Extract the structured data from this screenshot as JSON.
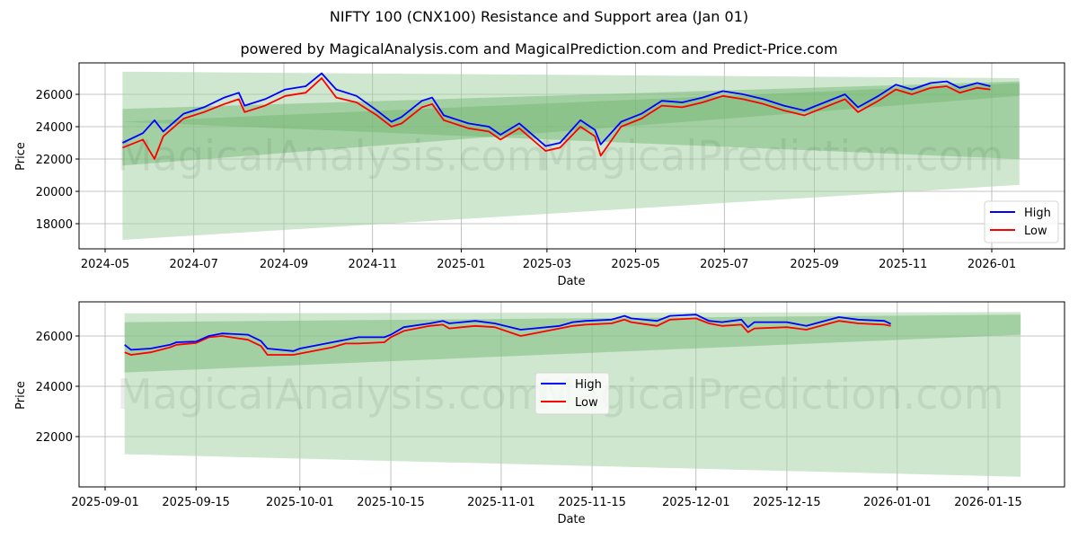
{
  "header": {
    "title": "NIFTY 100 (CNX100) Resistance and Support area (Jan 01)",
    "subtitle": "powered by MagicalAnalysis.com and MagicalPrediction.com and Predict-Price.com"
  },
  "watermarks": [
    "MagicalAnalysis.com",
    "MagicalPrediction.com"
  ],
  "colors": {
    "high": "#0000ff",
    "low": "#ff0000",
    "band_light": "#a5d4a5",
    "band_dark": "#6fb46f",
    "grid": "#b0b0b0"
  },
  "chart_data": [
    {
      "type": "line",
      "title": "NIFTY 100 (CNX100) Resistance and Support area (Jan 01)",
      "xlabel": "Date",
      "ylabel": "Price",
      "x_ticks": [
        "2024-05",
        "2024-07",
        "2024-09",
        "2024-11",
        "2025-01",
        "2025-03",
        "2025-05",
        "2025-07",
        "2025-09",
        "2025-11",
        "2026-01"
      ],
      "y_ticks": [
        18000,
        20000,
        22000,
        24000,
        26000
      ],
      "ylim": [
        16500,
        28000
      ],
      "grid": true,
      "legend": {
        "position": "lower right",
        "entries": [
          "High",
          "Low"
        ]
      },
      "x": [
        "2024-05-13",
        "2024-05-27",
        "2024-06-04",
        "2024-06-10",
        "2024-06-24",
        "2024-07-08",
        "2024-07-22",
        "2024-08-01",
        "2024-08-05",
        "2024-08-19",
        "2024-09-02",
        "2024-09-16",
        "2024-09-27",
        "2024-10-07",
        "2024-10-21",
        "2024-11-04",
        "2024-11-14",
        "2024-11-21",
        "2024-12-05",
        "2024-12-12",
        "2024-12-20",
        "2025-01-06",
        "2025-01-20",
        "2025-01-28",
        "2025-02-10",
        "2025-02-28",
        "2025-03-10",
        "2025-03-24",
        "2025-04-03",
        "2025-04-07",
        "2025-04-21",
        "2025-05-05",
        "2025-05-19",
        "2025-06-02",
        "2025-06-16",
        "2025-06-30",
        "2025-07-14",
        "2025-07-28",
        "2025-08-11",
        "2025-08-25",
        "2025-09-08",
        "2025-09-22",
        "2025-10-01",
        "2025-10-15",
        "2025-10-27",
        "2025-11-07",
        "2025-11-20",
        "2025-12-01",
        "2025-12-10",
        "2025-12-22",
        "2025-12-31"
      ],
      "series": [
        {
          "name": "High",
          "values": [
            23000,
            23600,
            24400,
            23700,
            24800,
            25200,
            25800,
            26100,
            25300,
            25700,
            26300,
            26500,
            27300,
            26300,
            25900,
            25000,
            24300,
            24600,
            25600,
            25800,
            24700,
            24200,
            24000,
            23500,
            24200,
            22800,
            23000,
            24400,
            23800,
            22900,
            24300,
            24800,
            25600,
            25500,
            25800,
            26200,
            26000,
            25700,
            25300,
            25000,
            25500,
            26000,
            25200,
            25900,
            26600,
            26300,
            26700,
            26800,
            26400,
            26700,
            26500
          ]
        },
        {
          "name": "Low",
          "values": [
            22700,
            23200,
            22000,
            23400,
            24500,
            24900,
            25400,
            25700,
            24900,
            25300,
            25900,
            26100,
            27000,
            25800,
            25500,
            24700,
            24000,
            24200,
            25200,
            25400,
            24400,
            23900,
            23700,
            23200,
            23900,
            22500,
            22700,
            24000,
            23400,
            22200,
            24000,
            24500,
            25300,
            25200,
            25500,
            25900,
            25700,
            25400,
            25000,
            24700,
            25200,
            25700,
            24900,
            25600,
            26300,
            26000,
            26400,
            26500,
            26100,
            26400,
            26300
          ]
        }
      ],
      "bands": [
        {
          "name": "outer",
          "x_start": "2024-05-13",
          "x_end": "2026-01-20",
          "top": [
            27400,
            27000
          ],
          "bottom": [
            17000,
            20400
          ]
        },
        {
          "name": "inner-1",
          "x_start": "2024-05-13",
          "x_end": "2026-01-20",
          "top": [
            25100,
            26800
          ],
          "bottom": [
            21600,
            25900
          ]
        },
        {
          "name": "inner-2",
          "x_start": "2024-05-13",
          "x_end": "2026-01-20",
          "top": [
            24300,
            26700
          ],
          "bottom": [
            24300,
            22000
          ]
        }
      ]
    },
    {
      "type": "line",
      "title": "",
      "xlabel": "Date",
      "ylabel": "Price",
      "x_ticks": [
        "2025-09-01",
        "2025-09-15",
        "2025-10-01",
        "2025-10-15",
        "2025-11-01",
        "2025-11-15",
        "2025-12-01",
        "2025-12-15",
        "2026-01-01",
        "2026-01-15"
      ],
      "y_ticks": [
        22000,
        24000,
        26000
      ],
      "ylim": [
        20000,
        27300
      ],
      "grid": true,
      "legend": {
        "position": "center",
        "entries": [
          "High",
          "Low"
        ]
      },
      "x": [
        "2025-09-04",
        "2025-09-05",
        "2025-09-08",
        "2025-09-11",
        "2025-09-12",
        "2025-09-15",
        "2025-09-17",
        "2025-09-19",
        "2025-09-23",
        "2025-09-25",
        "2025-09-26",
        "2025-09-30",
        "2025-10-01",
        "2025-10-06",
        "2025-10-08",
        "2025-10-10",
        "2025-10-14",
        "2025-10-15",
        "2025-10-17",
        "2025-10-21",
        "2025-10-23",
        "2025-10-24",
        "2025-10-28",
        "2025-10-31",
        "2025-11-04",
        "2025-11-06",
        "2025-11-10",
        "2025-11-12",
        "2025-11-14",
        "2025-11-18",
        "2025-11-20",
        "2025-11-21",
        "2025-11-25",
        "2025-11-27",
        "2025-12-01",
        "2025-12-03",
        "2025-12-05",
        "2025-12-08",
        "2025-12-09",
        "2025-12-10",
        "2025-12-15",
        "2025-12-18",
        "2025-12-23",
        "2025-12-26",
        "2025-12-30",
        "2025-12-31"
      ],
      "series": [
        {
          "name": "High",
          "values": [
            25650,
            25450,
            25500,
            25650,
            25750,
            25780,
            26000,
            26100,
            26050,
            25800,
            25500,
            25400,
            25500,
            25750,
            25850,
            25950,
            25950,
            26050,
            26350,
            26500,
            26600,
            26500,
            26600,
            26500,
            26250,
            26300,
            26400,
            26550,
            26600,
            26650,
            26800,
            26700,
            26600,
            26800,
            26850,
            26600,
            26550,
            26650,
            26350,
            26550,
            26550,
            26400,
            26750,
            26650,
            26600,
            26480
          ]
        },
        {
          "name": "Low",
          "values": [
            25350,
            25250,
            25350,
            25550,
            25650,
            25720,
            25950,
            26000,
            25850,
            25600,
            25250,
            25250,
            25300,
            25550,
            25700,
            25700,
            25750,
            25950,
            26200,
            26400,
            26450,
            26300,
            26400,
            26350,
            26000,
            26100,
            26300,
            26400,
            26450,
            26500,
            26650,
            26550,
            26400,
            26650,
            26700,
            26500,
            26400,
            26450,
            26150,
            26300,
            26350,
            26250,
            26600,
            26500,
            26450,
            26400
          ]
        }
      ],
      "bands": [
        {
          "name": "outer",
          "x_start": "2025-09-04",
          "x_end": "2026-01-20",
          "top": [
            26900,
            26950
          ],
          "bottom": [
            21300,
            20400
          ]
        },
        {
          "name": "inner-1",
          "x_start": "2025-09-04",
          "x_end": "2026-01-20",
          "top": [
            26550,
            26850
          ],
          "bottom": [
            24550,
            26050
          ]
        },
        {
          "name": "inner-2",
          "x_start": "2025-09-04",
          "x_end": "2026-01-20",
          "top": [
            25000,
            26750
          ],
          "bottom": [
            25000,
            26750
          ]
        }
      ]
    }
  ]
}
